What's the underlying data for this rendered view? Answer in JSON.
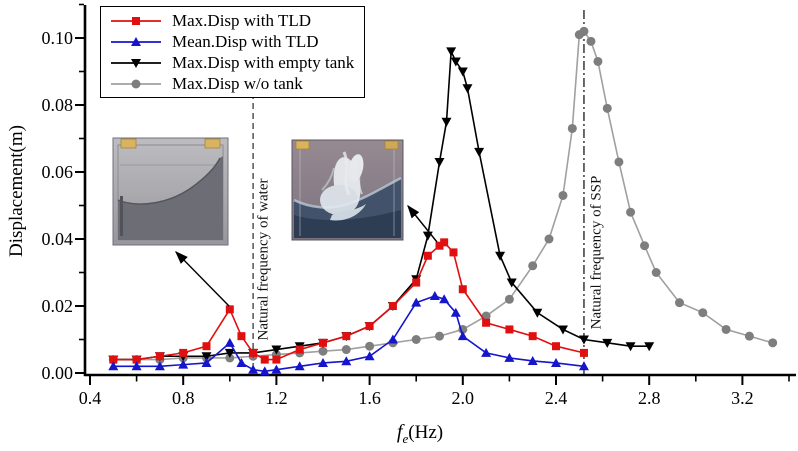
{
  "axes": {
    "x": {
      "label_f": "f",
      "label_sub": "e",
      "label_unit": "(Hz)",
      "major_ticks": [
        "0.4",
        "0.8",
        "1.2",
        "1.6",
        "2.0",
        "2.4",
        "2.8",
        "3.2"
      ],
      "major_values": [
        0.4,
        0.8,
        1.2,
        1.6,
        2.0,
        2.4,
        2.8,
        3.2
      ],
      "minor_values": [
        0.6,
        1.0,
        1.4,
        1.8,
        2.2,
        2.6,
        3.0,
        3.4
      ],
      "range": [
        0.38,
        3.43
      ]
    },
    "y": {
      "label": "Displacement(m)",
      "major_ticks": [
        "0.00",
        "0.02",
        "0.04",
        "0.06",
        "0.08",
        "0.10"
      ],
      "major_values": [
        0.0,
        0.02,
        0.04,
        0.06,
        0.08,
        0.1
      ],
      "minor_values": [
        0.01,
        0.03,
        0.05,
        0.07,
        0.09,
        0.11
      ],
      "range": [
        0,
        0.108
      ]
    }
  },
  "legend": {
    "items": [
      {
        "label": "Max.Disp with TLD",
        "line_color": "#e01010",
        "marker_color": "#e01010",
        "marker": "square"
      },
      {
        "label": "Mean.Disp with TLD",
        "line_color": "#1515cc",
        "marker_color": "#1515cc",
        "marker": "triangle-up"
      },
      {
        "label": "Max.Disp with empty tank",
        "line_color": "#000000",
        "marker_color": "#000000",
        "marker": "triangle-down"
      },
      {
        "label": "Max.Disp w/o tank",
        "line_color": "#a0a0a0",
        "marker_color": "#7e7e7e",
        "marker": "circle"
      }
    ]
  },
  "annotations": {
    "water": {
      "label": "Natural frequency of water",
      "f": 1.1,
      "line_style": "dashed"
    },
    "ssp": {
      "label": "Natural frequency of SSP",
      "f": 2.52,
      "line_style": "dash-dot"
    }
  },
  "chart_data": {
    "type": "line",
    "title": "",
    "xlabel": "fe(Hz)",
    "ylabel": "Displacement(m)",
    "xlim": [
      0.38,
      3.43
    ],
    "ylim": [
      0,
      0.108
    ],
    "grid": false,
    "legend_position": "top-left",
    "series": [
      {
        "name": "Max.Disp with TLD",
        "line_color": "#e01010",
        "marker_color": "#e01010",
        "marker": "square",
        "points": [
          [
            0.5,
            0.004
          ],
          [
            0.6,
            0.004
          ],
          [
            0.7,
            0.005
          ],
          [
            0.8,
            0.006
          ],
          [
            0.9,
            0.008
          ],
          [
            1.0,
            0.019
          ],
          [
            1.05,
            0.011
          ],
          [
            1.1,
            0.006
          ],
          [
            1.15,
            0.004
          ],
          [
            1.2,
            0.004
          ],
          [
            1.3,
            0.007
          ],
          [
            1.4,
            0.009
          ],
          [
            1.5,
            0.011
          ],
          [
            1.6,
            0.014
          ],
          [
            1.7,
            0.02
          ],
          [
            1.8,
            0.027
          ],
          [
            1.85,
            0.035
          ],
          [
            1.9,
            0.038
          ],
          [
            1.92,
            0.039
          ],
          [
            1.96,
            0.036
          ],
          [
            2.0,
            0.025
          ],
          [
            2.1,
            0.015
          ],
          [
            2.2,
            0.013
          ],
          [
            2.3,
            0.011
          ],
          [
            2.4,
            0.008
          ],
          [
            2.52,
            0.006
          ]
        ]
      },
      {
        "name": "Mean.Disp with TLD",
        "line_color": "#1515cc",
        "marker_color": "#1515cc",
        "marker": "triangle-up",
        "points": [
          [
            0.5,
            0.002
          ],
          [
            0.6,
            0.002
          ],
          [
            0.7,
            0.002
          ],
          [
            0.8,
            0.0025
          ],
          [
            0.9,
            0.003
          ],
          [
            1.0,
            0.009
          ],
          [
            1.05,
            0.003
          ],
          [
            1.1,
            0.001
          ],
          [
            1.15,
            0.0005
          ],
          [
            1.2,
            0.001
          ],
          [
            1.3,
            0.002
          ],
          [
            1.4,
            0.003
          ],
          [
            1.5,
            0.0035
          ],
          [
            1.6,
            0.005
          ],
          [
            1.7,
            0.01
          ],
          [
            1.8,
            0.021
          ],
          [
            1.88,
            0.023
          ],
          [
            1.92,
            0.022
          ],
          [
            1.97,
            0.018
          ],
          [
            2.0,
            0.011
          ],
          [
            2.1,
            0.006
          ],
          [
            2.2,
            0.0045
          ],
          [
            2.3,
            0.0036
          ],
          [
            2.4,
            0.003
          ],
          [
            2.52,
            0.002
          ]
        ]
      },
      {
        "name": "Max.Disp with empty tank",
        "line_color": "#000000",
        "marker_color": "#000000",
        "marker": "triangle-down",
        "points": [
          [
            0.5,
            0.004
          ],
          [
            0.6,
            0.004
          ],
          [
            0.7,
            0.005
          ],
          [
            0.8,
            0.005
          ],
          [
            0.9,
            0.005
          ],
          [
            1.0,
            0.006
          ],
          [
            1.1,
            0.006
          ],
          [
            1.2,
            0.007
          ],
          [
            1.3,
            0.008
          ],
          [
            1.4,
            0.009
          ],
          [
            1.5,
            0.011
          ],
          [
            1.6,
            0.014
          ],
          [
            1.7,
            0.02
          ],
          [
            1.8,
            0.028
          ],
          [
            1.85,
            0.041
          ],
          [
            1.9,
            0.063
          ],
          [
            1.93,
            0.075
          ],
          [
            1.95,
            0.096
          ],
          [
            1.97,
            0.093
          ],
          [
            2.0,
            0.09
          ],
          [
            2.02,
            0.085
          ],
          [
            2.07,
            0.066
          ],
          [
            2.16,
            0.035
          ],
          [
            2.21,
            0.027
          ],
          [
            2.32,
            0.018
          ],
          [
            2.43,
            0.013
          ],
          [
            2.52,
            0.01
          ],
          [
            2.62,
            0.009
          ],
          [
            2.72,
            0.008
          ],
          [
            2.8,
            0.008
          ]
        ]
      },
      {
        "name": "Max.Disp w/o tank",
        "line_color": "#a0a0a0",
        "marker_color": "#7e7e7e",
        "marker": "circle",
        "points": [
          [
            0.5,
            0.004
          ],
          [
            0.6,
            0.004
          ],
          [
            0.7,
            0.004
          ],
          [
            0.8,
            0.0045
          ],
          [
            0.9,
            0.0045
          ],
          [
            1.0,
            0.0045
          ],
          [
            1.1,
            0.005
          ],
          [
            1.2,
            0.0055
          ],
          [
            1.3,
            0.006
          ],
          [
            1.4,
            0.0065
          ],
          [
            1.5,
            0.007
          ],
          [
            1.6,
            0.008
          ],
          [
            1.7,
            0.009
          ],
          [
            1.8,
            0.01
          ],
          [
            1.9,
            0.011
          ],
          [
            2.0,
            0.013
          ],
          [
            2.1,
            0.017
          ],
          [
            2.2,
            0.022
          ],
          [
            2.3,
            0.032
          ],
          [
            2.37,
            0.04
          ],
          [
            2.43,
            0.053
          ],
          [
            2.47,
            0.073
          ],
          [
            2.5,
            0.101
          ],
          [
            2.52,
            0.102
          ],
          [
            2.55,
            0.099
          ],
          [
            2.58,
            0.093
          ],
          [
            2.62,
            0.079
          ],
          [
            2.67,
            0.063
          ],
          [
            2.72,
            0.048
          ],
          [
            2.78,
            0.038
          ],
          [
            2.83,
            0.03
          ],
          [
            2.93,
            0.021
          ],
          [
            3.03,
            0.018
          ],
          [
            3.13,
            0.013
          ],
          [
            3.23,
            0.011
          ],
          [
            3.33,
            0.009
          ]
        ]
      }
    ],
    "vertical_reference_lines": [
      {
        "label": "Natural frequency of water",
        "x": 1.1
      },
      {
        "label": "Natural frequency of SSP",
        "x": 2.52
      }
    ]
  }
}
